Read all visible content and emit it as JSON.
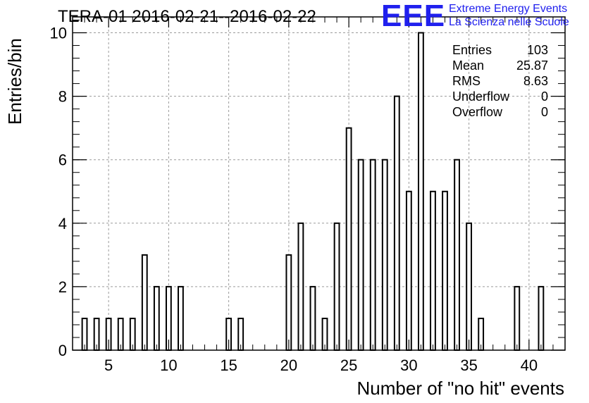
{
  "chart_data": {
    "type": "bar",
    "title": "TERA-01 2016-02-21--2016-02-22",
    "xlabel": "Number of \"no hit\" events",
    "ylabel": "Entries/bin",
    "xlim": [
      2,
      43
    ],
    "ylim": [
      0,
      10.5
    ],
    "x_ticks": [
      5,
      10,
      15,
      20,
      25,
      30,
      35,
      40
    ],
    "y_ticks": [
      0,
      2,
      4,
      6,
      8,
      10
    ],
    "grid": true,
    "bar_width": 0.4,
    "bins": [
      3,
      4,
      5,
      6,
      7,
      8,
      9,
      10,
      11,
      15,
      16,
      20,
      21,
      22,
      23,
      24,
      25,
      26,
      27,
      28,
      29,
      30,
      31,
      32,
      33,
      34,
      35,
      36,
      39,
      41
    ],
    "values": [
      1,
      1,
      1,
      1,
      1,
      3,
      2,
      2,
      2,
      1,
      1,
      3,
      4,
      2,
      1,
      4,
      7,
      6,
      6,
      6,
      8,
      5,
      10,
      5,
      5,
      6,
      4,
      1,
      2,
      2
    ],
    "stats": [
      {
        "label": "Entries",
        "value": "103"
      },
      {
        "label": "Mean",
        "value": "25.87"
      },
      {
        "label": "RMS",
        "value": "8.63"
      },
      {
        "label": "Underflow",
        "value": "0"
      },
      {
        "label": "Overflow",
        "value": "0"
      }
    ]
  },
  "logo": {
    "mark": "EEE",
    "line1": "Extreme Energy Events",
    "line2": "La Scienza nelle Scuole",
    "color": "#2020ee"
  }
}
